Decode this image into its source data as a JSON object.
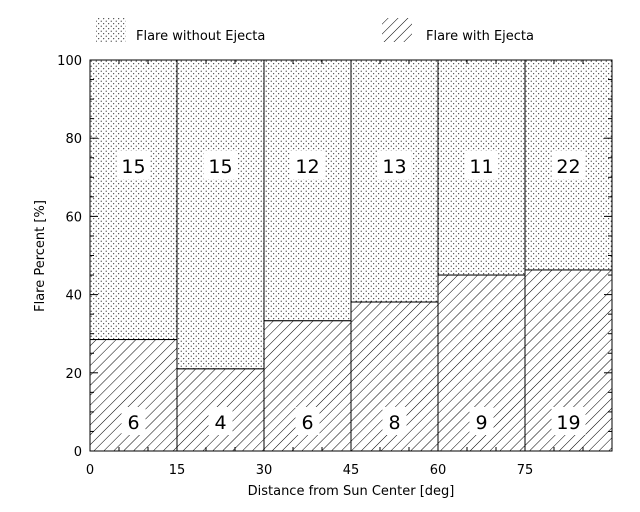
{
  "chart_data": {
    "type": "bar",
    "stacked": true,
    "xlabel": "Distance from Sun Center [deg]",
    "ylabel": "Flare Percent [%]",
    "ylim": [
      0,
      100
    ],
    "xlim": [
      0,
      90
    ],
    "x_ticks": [
      "0",
      "15",
      "30",
      "45",
      "60",
      "75"
    ],
    "y_ticks": [
      "0",
      "20",
      "40",
      "60",
      "80",
      "100"
    ],
    "bins": [
      {
        "from": 0,
        "to": 15,
        "with_ejecta_percent": 28.5,
        "without_ejecta_percent": 71.5,
        "with_ejecta_count": "6",
        "without_ejecta_count": "15"
      },
      {
        "from": 15,
        "to": 30,
        "with_ejecta_percent": 21.0,
        "without_ejecta_percent": 79.0,
        "with_ejecta_count": "4",
        "without_ejecta_count": "15"
      },
      {
        "from": 30,
        "to": 45,
        "with_ejecta_percent": 33.3,
        "without_ejecta_percent": 66.7,
        "with_ejecta_count": "6",
        "without_ejecta_count": "12"
      },
      {
        "from": 45,
        "to": 60,
        "with_ejecta_percent": 38.1,
        "without_ejecta_percent": 61.9,
        "with_ejecta_count": "8",
        "without_ejecta_count": "13"
      },
      {
        "from": 60,
        "to": 75,
        "with_ejecta_percent": 45.0,
        "without_ejecta_percent": 55.0,
        "with_ejecta_count": "9",
        "without_ejecta_count": "11"
      },
      {
        "from": 75,
        "to": 90,
        "with_ejecta_percent": 46.3,
        "without_ejecta_percent": 53.7,
        "with_ejecta_count": "19",
        "without_ejecta_count": "22"
      }
    ],
    "legend": {
      "placement": "top",
      "items": [
        {
          "label": "Flare without Ejecta",
          "pattern": "dots"
        },
        {
          "label": "Flare with Ejecta",
          "pattern": "hatch"
        }
      ]
    },
    "grid": false
  }
}
